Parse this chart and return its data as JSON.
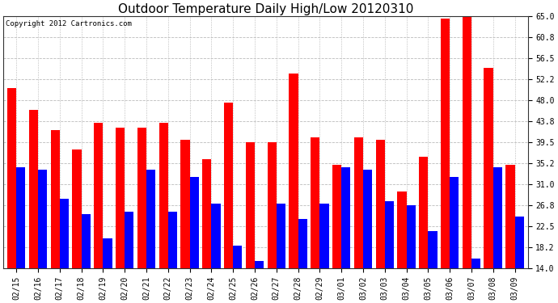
{
  "title": "Outdoor Temperature Daily High/Low 20120310",
  "copyright": "Copyright 2012 Cartronics.com",
  "dates": [
    "02/15",
    "02/16",
    "02/17",
    "02/18",
    "02/19",
    "02/20",
    "02/21",
    "02/22",
    "02/23",
    "02/24",
    "02/25",
    "02/26",
    "02/27",
    "02/28",
    "02/29",
    "03/01",
    "03/02",
    "03/03",
    "03/04",
    "03/05",
    "03/06",
    "03/07",
    "03/08",
    "03/09"
  ],
  "highs": [
    50.5,
    46.0,
    42.0,
    38.0,
    43.5,
    42.5,
    42.5,
    43.5,
    40.0,
    36.0,
    47.5,
    39.5,
    39.5,
    53.5,
    40.5,
    35.0,
    40.5,
    40.0,
    29.5,
    36.5,
    64.5,
    65.0,
    54.5,
    35.0
  ],
  "lows": [
    34.5,
    34.0,
    28.0,
    25.0,
    20.0,
    25.5,
    34.0,
    25.5,
    32.5,
    27.0,
    18.5,
    15.5,
    27.0,
    24.0,
    27.0,
    34.5,
    34.0,
    27.5,
    26.8,
    21.5,
    32.5,
    16.0,
    34.5,
    24.5
  ],
  "high_color": "#ff0000",
  "low_color": "#0000ff",
  "bg_color": "#ffffff",
  "ylim_min": 14.0,
  "ylim_max": 65.0,
  "yticks": [
    14.0,
    18.2,
    22.5,
    26.8,
    31.0,
    35.2,
    39.5,
    43.8,
    48.0,
    52.2,
    56.5,
    60.8,
    65.0
  ],
  "grid_color": "#bbbbbb",
  "title_fontsize": 11,
  "copyright_fontsize": 6.5,
  "tick_fontsize": 7,
  "bar_width": 0.42,
  "fig_width": 6.9,
  "fig_height": 3.75,
  "dpi": 100
}
